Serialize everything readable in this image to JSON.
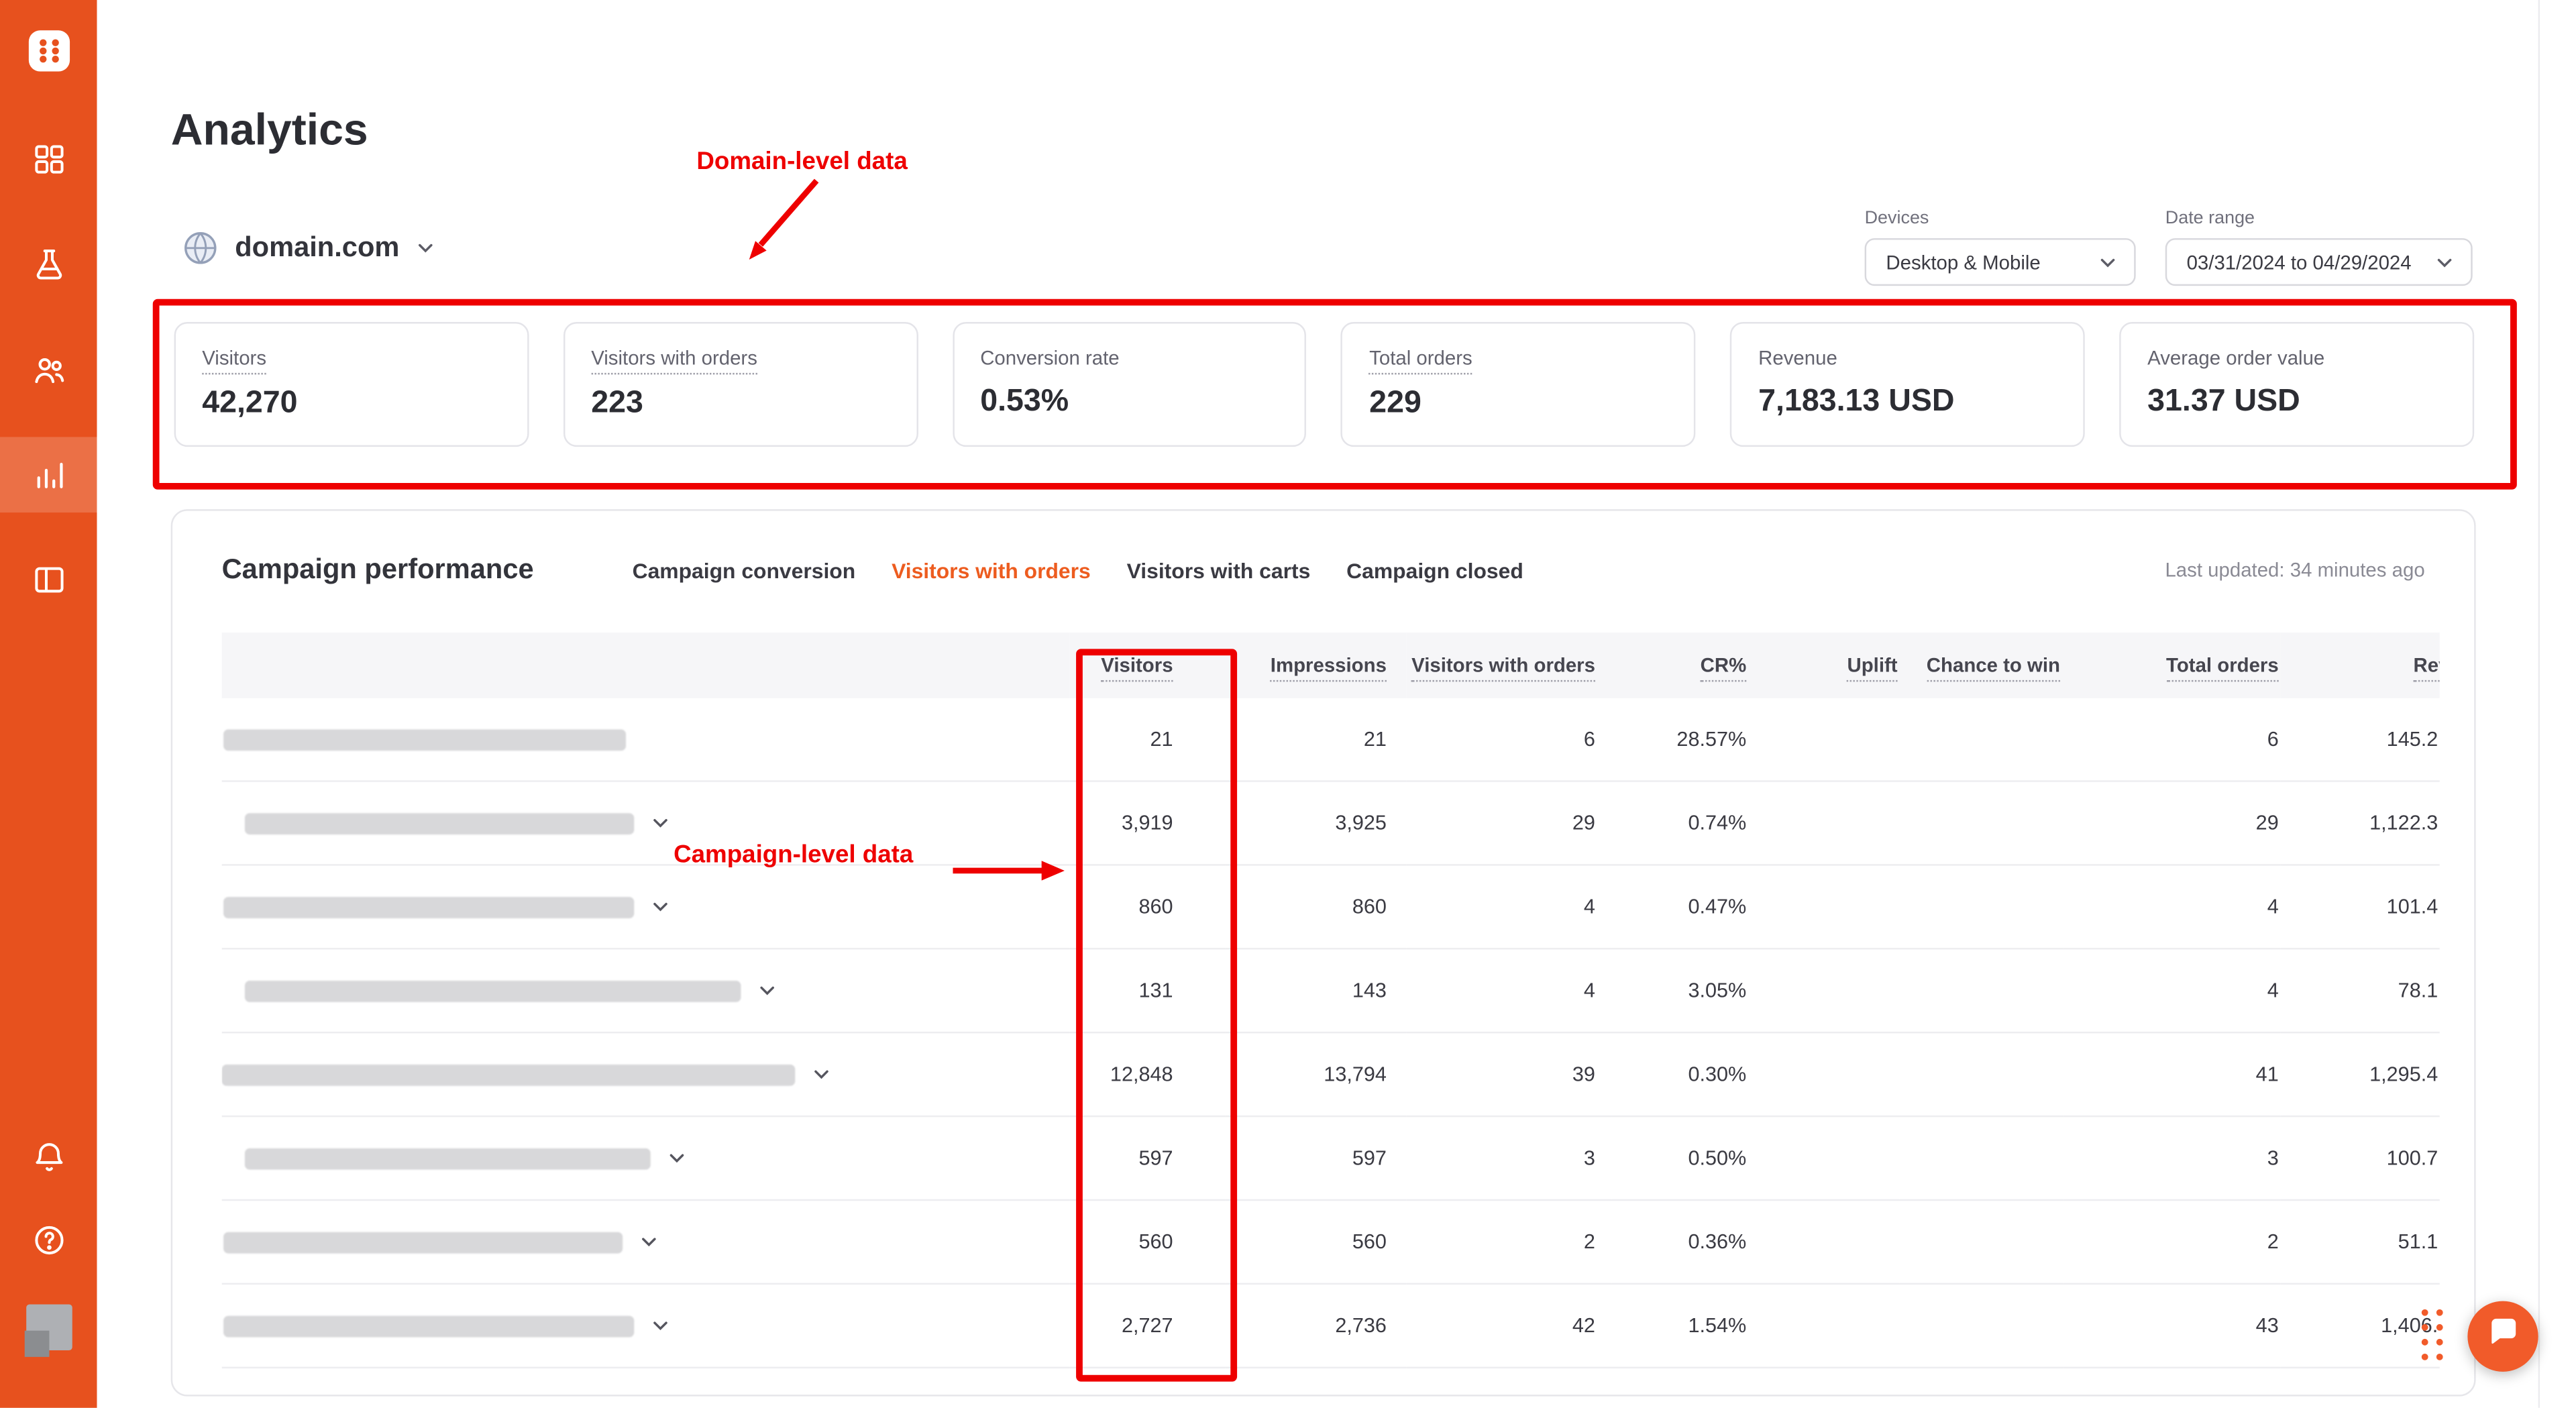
{
  "app": {
    "accent_color": "#E7511E",
    "annotation_color": "#EE0000"
  },
  "sidebar": {
    "items": [
      {
        "icon": "logo",
        "name": "app-logo",
        "active": false
      },
      {
        "icon": "dashboard",
        "name": "nav-dashboard",
        "active": false
      },
      {
        "icon": "experiments",
        "name": "nav-experiments",
        "active": false
      },
      {
        "icon": "audience",
        "name": "nav-audience",
        "active": false
      },
      {
        "icon": "analytics",
        "name": "nav-analytics",
        "active": true
      },
      {
        "icon": "templates",
        "name": "nav-templates",
        "active": false
      }
    ],
    "bottom_items": [
      {
        "icon": "notifications",
        "name": "nav-notifications"
      },
      {
        "icon": "help",
        "name": "nav-help"
      }
    ]
  },
  "header": {
    "title": "Analytics",
    "domain": "domain.com",
    "devices": {
      "label": "Devices",
      "value": "Desktop & Mobile"
    },
    "date_range": {
      "label": "Date range",
      "value": "03/31/2024 to 04/29/2024"
    }
  },
  "annotations": {
    "domain_level": "Domain-level data",
    "campaign_level": "Campaign-level data"
  },
  "kpis": [
    {
      "label": "Visitors",
      "value": "42,270",
      "dotted": true
    },
    {
      "label": "Visitors with orders",
      "value": "223",
      "dotted": true
    },
    {
      "label": "Conversion rate",
      "value": "0.53%",
      "dotted": false
    },
    {
      "label": "Total orders",
      "value": "229",
      "dotted": true
    },
    {
      "label": "Revenue",
      "value": "7,183.13 USD",
      "dotted": false
    },
    {
      "label": "Average order value",
      "value": "31.37 USD",
      "dotted": false
    }
  ],
  "campaign_performance": {
    "title": "Campaign performance",
    "tabs": [
      {
        "label": "Campaign conversion",
        "active": false
      },
      {
        "label": "Visitors with orders",
        "active": true
      },
      {
        "label": "Visitors with carts",
        "active": false
      },
      {
        "label": "Campaign closed",
        "active": false
      }
    ],
    "last_updated": "Last updated: 34 minutes ago",
    "table": {
      "columns": [
        {
          "key": "name",
          "label": "",
          "dotted": false
        },
        {
          "key": "visitors",
          "label": "Visitors",
          "dotted": true
        },
        {
          "key": "impressions",
          "label": "Impressions",
          "dotted": true
        },
        {
          "key": "visitors_with_orders",
          "label": "Visitors with orders",
          "dotted": true
        },
        {
          "key": "cr",
          "label": "CR%",
          "dotted": true
        },
        {
          "key": "uplift",
          "label": "Uplift",
          "dotted": true
        },
        {
          "key": "chance_to_win",
          "label": "Chance to win",
          "dotted": true
        },
        {
          "key": "total_orders",
          "label": "Total orders",
          "dotted": true
        },
        {
          "key": "revenue",
          "label": "Revenue",
          "dotted": true
        }
      ],
      "rows": [
        {
          "name_redacted": true,
          "name_width": 245,
          "name_indent": 1,
          "expandable": false,
          "visitors": "21",
          "impressions": "21",
          "visitors_with_orders": "6",
          "cr": "28.57%",
          "uplift": "",
          "chance_to_win": "",
          "total_orders": "6",
          "revenue": "145.2"
        },
        {
          "name_redacted": true,
          "name_width": 237,
          "name_indent": 14,
          "expandable": true,
          "visitors": "3,919",
          "impressions": "3,925",
          "visitors_with_orders": "29",
          "cr": "0.74%",
          "uplift": "",
          "chance_to_win": "",
          "total_orders": "29",
          "revenue": "1,122.3"
        },
        {
          "name_redacted": true,
          "name_width": 250,
          "name_indent": 1,
          "expandable": true,
          "visitors": "860",
          "impressions": "860",
          "visitors_with_orders": "4",
          "cr": "0.47%",
          "uplift": "",
          "chance_to_win": "",
          "total_orders": "4",
          "revenue": "101.4"
        },
        {
          "name_redacted": true,
          "name_width": 302,
          "name_indent": 14,
          "expandable": true,
          "visitors": "131",
          "impressions": "143",
          "visitors_with_orders": "4",
          "cr": "3.05%",
          "uplift": "",
          "chance_to_win": "",
          "total_orders": "4",
          "revenue": "78.1"
        },
        {
          "name_redacted": true,
          "name_width": 349,
          "name_indent": 0,
          "expandable": true,
          "visitors": "12,848",
          "impressions": "13,794",
          "visitors_with_orders": "39",
          "cr": "0.30%",
          "uplift": "",
          "chance_to_win": "",
          "total_orders": "41",
          "revenue": "1,295.4"
        },
        {
          "name_redacted": true,
          "name_width": 247,
          "name_indent": 14,
          "expandable": true,
          "visitors": "597",
          "impressions": "597",
          "visitors_with_orders": "3",
          "cr": "0.50%",
          "uplift": "",
          "chance_to_win": "",
          "total_orders": "3",
          "revenue": "100.7"
        },
        {
          "name_redacted": true,
          "name_width": 243,
          "name_indent": 1,
          "expandable": true,
          "visitors": "560",
          "impressions": "560",
          "visitors_with_orders": "2",
          "cr": "0.36%",
          "uplift": "",
          "chance_to_win": "",
          "total_orders": "2",
          "revenue": "51.1"
        },
        {
          "name_redacted": true,
          "name_width": 250,
          "name_indent": 1,
          "expandable": true,
          "visitors": "2,727",
          "impressions": "2,736",
          "visitors_with_orders": "42",
          "cr": "1.54%",
          "uplift": "",
          "chance_to_win": "",
          "total_orders": "43",
          "revenue": "1,406."
        }
      ]
    }
  }
}
